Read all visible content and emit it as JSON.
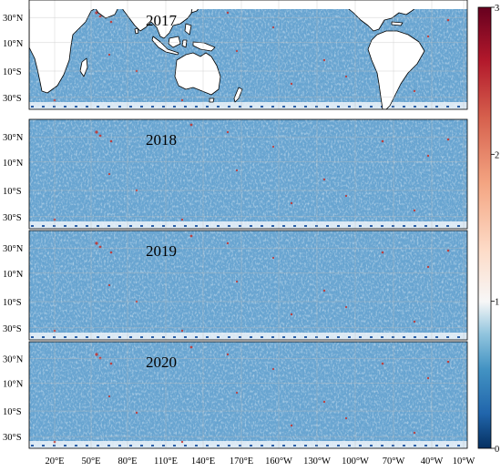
{
  "panels": [
    {
      "id": "panel-2017",
      "year": "2017"
    },
    {
      "id": "panel-2018",
      "year": "2018"
    },
    {
      "id": "panel-2019",
      "year": "2019"
    },
    {
      "id": "panel-2020",
      "year": "2020"
    }
  ],
  "lat_ticks": [
    "30°N",
    "10°N",
    "10°S",
    "30°S"
  ],
  "lon_ticks": [
    "20°E",
    "50°E",
    "80°E",
    "110°E",
    "140°E",
    "170°E",
    "160°W",
    "130°W",
    "100°W",
    "70°W",
    "40°W",
    "10°W"
  ],
  "colorbar": {
    "ticks": [
      "0",
      "1",
      "2",
      "3"
    ],
    "min": 0,
    "max": 3,
    "colormap": "RdBu_r",
    "colors": {
      "low": "#053061",
      "mid": "#f7f7f7",
      "high": "#67001f"
    }
  },
  "colors": {
    "ocean_field": "#6aa5d1",
    "land": "#ffffff",
    "coast": "#000000"
  }
}
